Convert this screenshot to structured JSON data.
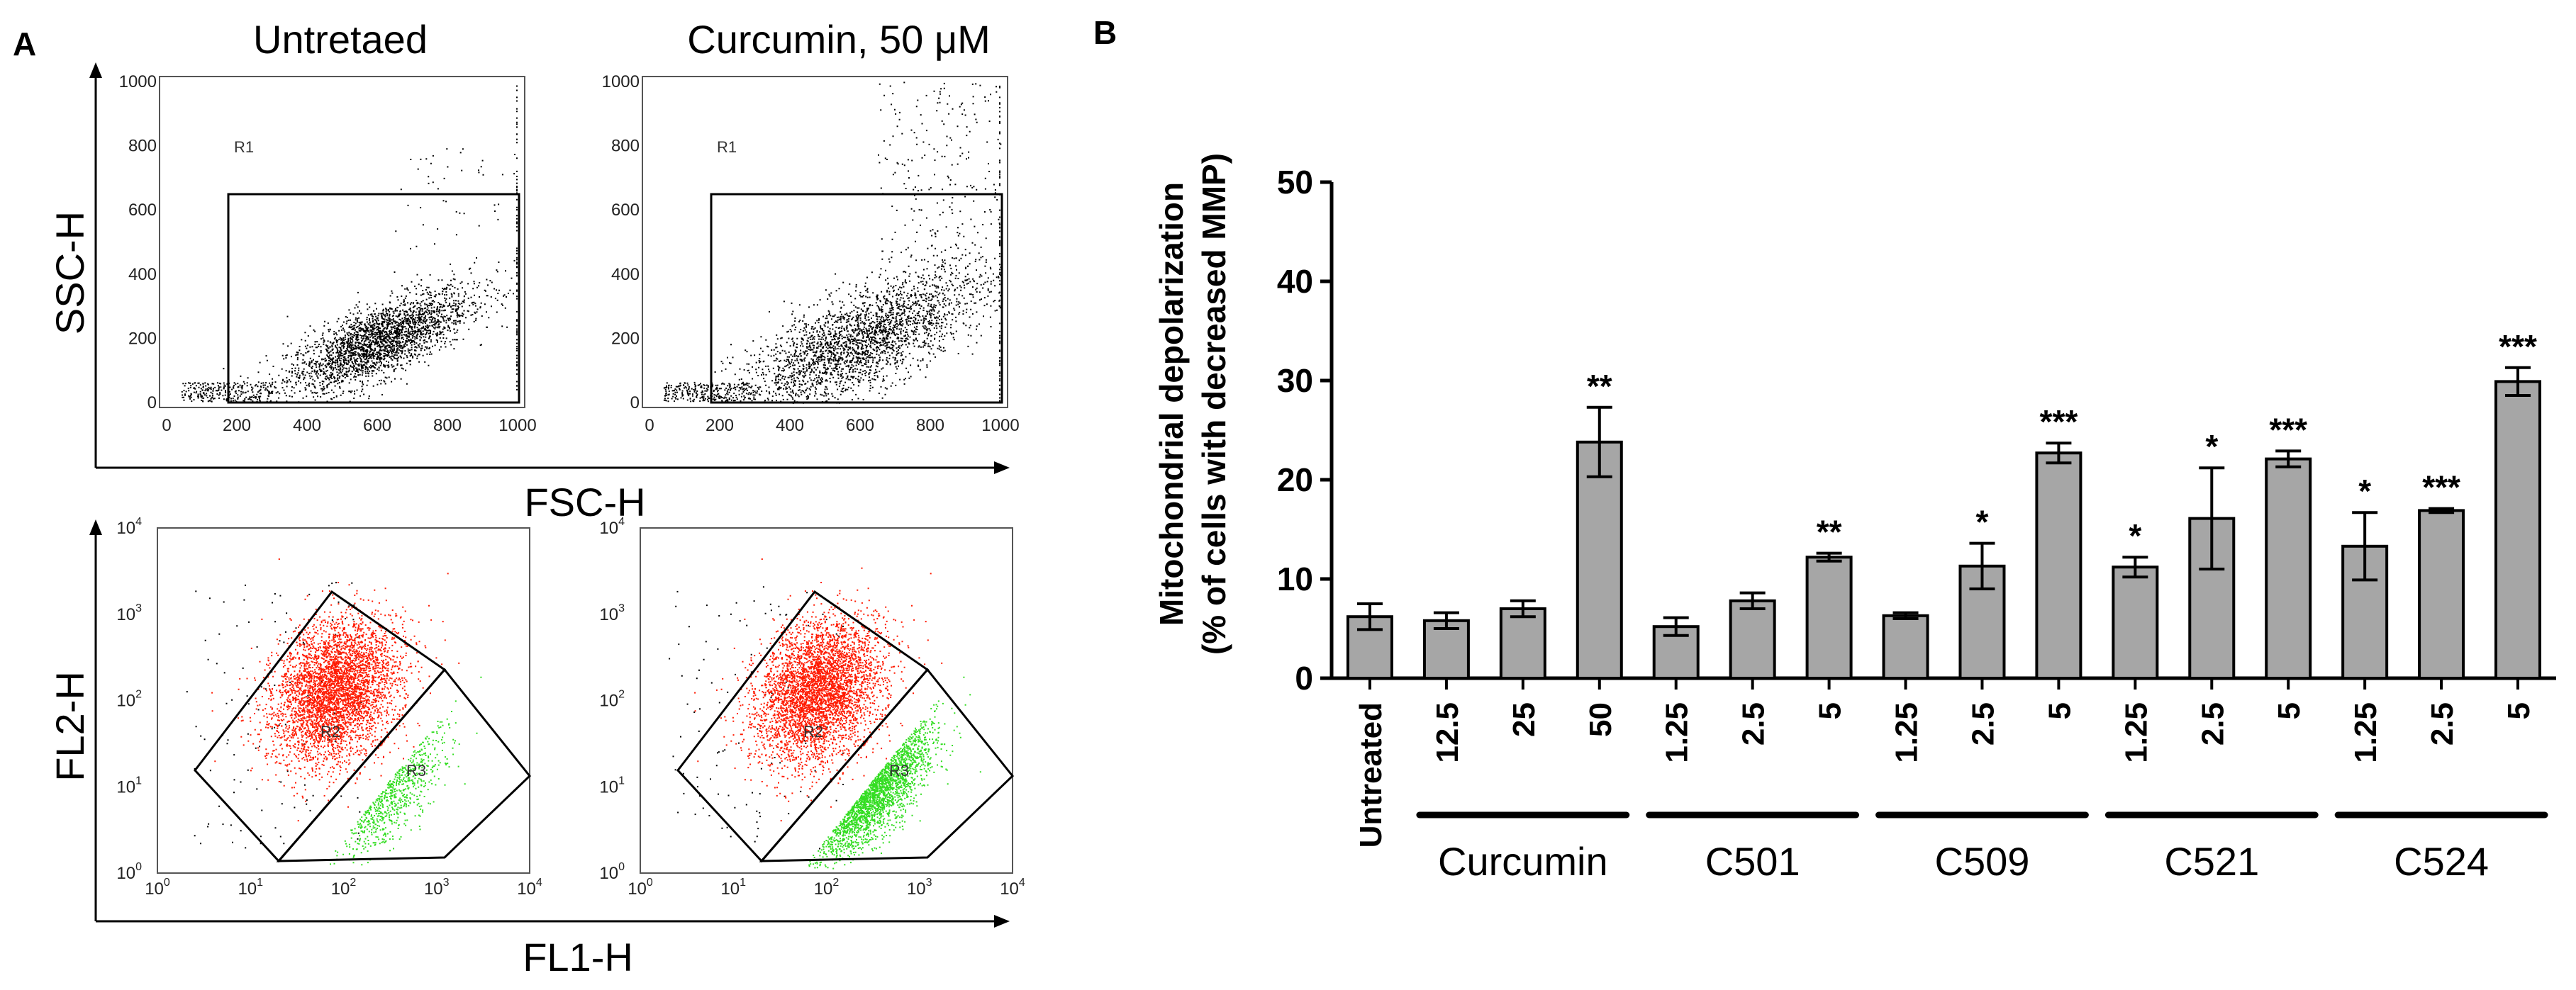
{
  "panel_a": {
    "letter": "A",
    "top_titles": [
      "Untretaed",
      "Curcumin, 50 μM"
    ],
    "scatter": {
      "ylabel": "SSC-H",
      "xlabel": "FSC-H",
      "ticks": [
        "0",
        "200",
        "400",
        "600",
        "800",
        "1000"
      ],
      "gate_label": "R1"
    },
    "fluorescence": {
      "ylabel": "FL2-H",
      "xlabel": "FL1-H",
      "tick_base": "10",
      "tick_exponents": [
        "0",
        "1",
        "2",
        "3",
        "4"
      ],
      "gate_labels": [
        "R2",
        "R3"
      ]
    },
    "colors": {
      "dots": "#000000",
      "red": "#ff1a00",
      "green": "#33dd22"
    }
  },
  "panel_b": {
    "letter": "B"
  },
  "chart_data": {
    "type": "bar",
    "ylabel_line1": "Mitochondrial depolarization",
    "ylabel_line2": "(% of cells with decreased MMP)",
    "ylim": [
      0,
      50
    ],
    "yticks": [
      "0",
      "10",
      "20",
      "30",
      "40",
      "50"
    ],
    "categories": [
      "Untreated",
      "12.5",
      "25",
      "50",
      "1.25",
      "2.5",
      "5",
      "1.25",
      "2.5",
      "5",
      "1.25",
      "2.5",
      "5",
      "1.25",
      "2.5",
      "5"
    ],
    "values": [
      6.2,
      5.8,
      7.0,
      23.8,
      5.2,
      7.8,
      12.2,
      6.3,
      11.3,
      22.7,
      11.2,
      16.1,
      22.1,
      13.3,
      16.9,
      29.9
    ],
    "errors": [
      1.3,
      0.8,
      0.8,
      3.5,
      0.9,
      0.8,
      0.4,
      0.3,
      2.3,
      1.0,
      1.0,
      5.1,
      0.8,
      3.4,
      0.2,
      1.4
    ],
    "significance": [
      "",
      "",
      "",
      "**",
      "",
      "",
      "**",
      "",
      "*",
      "***",
      "*",
      "*",
      "***",
      "*",
      "***",
      "***"
    ],
    "groups": [
      {
        "label": "Curcumin",
        "start": 1,
        "end": 3
      },
      {
        "label": "C501",
        "start": 4,
        "end": 6
      },
      {
        "label": "C509",
        "start": 7,
        "end": 9
      },
      {
        "label": "C521",
        "start": 10,
        "end": 12
      },
      {
        "label": "C524",
        "start": 13,
        "end": 15
      }
    ],
    "bar_color": "#a6a6a6",
    "edge_color": "#000000"
  }
}
